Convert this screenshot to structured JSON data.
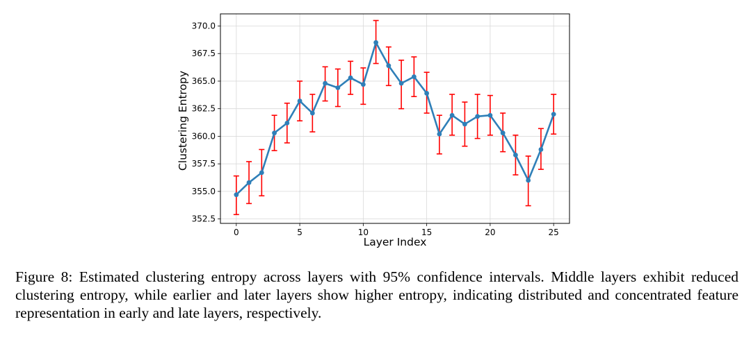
{
  "chart_data": {
    "type": "line",
    "title": "",
    "xlabel": "Layer Index",
    "ylabel": "Clustering Entropy",
    "xlim": [
      -1.25,
      26.25
    ],
    "ylim": [
      352.1,
      371.1
    ],
    "xticks": [
      0,
      5,
      10,
      15,
      20,
      25
    ],
    "yticks": [
      352.5,
      355.0,
      357.5,
      360.0,
      362.5,
      365.0,
      367.5,
      370.0
    ],
    "ytick_labels": [
      "352.5",
      "355.0",
      "357.5",
      "360.0",
      "362.5",
      "365.0",
      "367.5",
      "370.0"
    ],
    "grid": true,
    "legend": "none",
    "x": [
      0,
      1,
      2,
      3,
      4,
      5,
      6,
      7,
      8,
      9,
      10,
      11,
      12,
      13,
      14,
      15,
      16,
      17,
      18,
      19,
      20,
      21,
      22,
      23,
      24,
      25
    ],
    "series": [
      {
        "values": [
          354.7,
          355.8,
          356.7,
          360.3,
          361.2,
          363.2,
          362.1,
          364.8,
          364.4,
          365.3,
          364.7,
          368.5,
          366.4,
          364.8,
          365.4,
          363.9,
          360.2,
          361.9,
          361.1,
          361.8,
          361.9,
          360.3,
          358.3,
          356.0,
          358.8,
          362.0
        ],
        "err_low": [
          352.9,
          353.9,
          354.6,
          358.7,
          359.4,
          361.4,
          360.4,
          363.2,
          362.7,
          363.8,
          362.9,
          366.6,
          364.6,
          362.5,
          363.6,
          362.1,
          358.4,
          360.1,
          359.1,
          359.8,
          360.1,
          358.6,
          356.5,
          353.7,
          357.0,
          360.2
        ],
        "err_high": [
          356.4,
          357.7,
          358.8,
          361.9,
          363.0,
          365.0,
          363.8,
          366.3,
          366.1,
          366.8,
          366.2,
          370.5,
          368.1,
          366.9,
          367.2,
          365.8,
          361.9,
          363.8,
          363.1,
          363.8,
          363.7,
          362.1,
          360.1,
          358.2,
          360.7,
          363.8
        ]
      }
    ],
    "colors": {
      "line": "#2f7fb8",
      "error": "#ff0000",
      "grid": "#d9d9d9"
    }
  },
  "caption": {
    "text": "Figure 8: Estimated clustering entropy across layers with 95% confidence intervals. Middle layers exhibit reduced clustering entropy, while earlier and later layers show higher entropy, indicating distributed and concentrated feature representation in early and late layers, respectively."
  }
}
